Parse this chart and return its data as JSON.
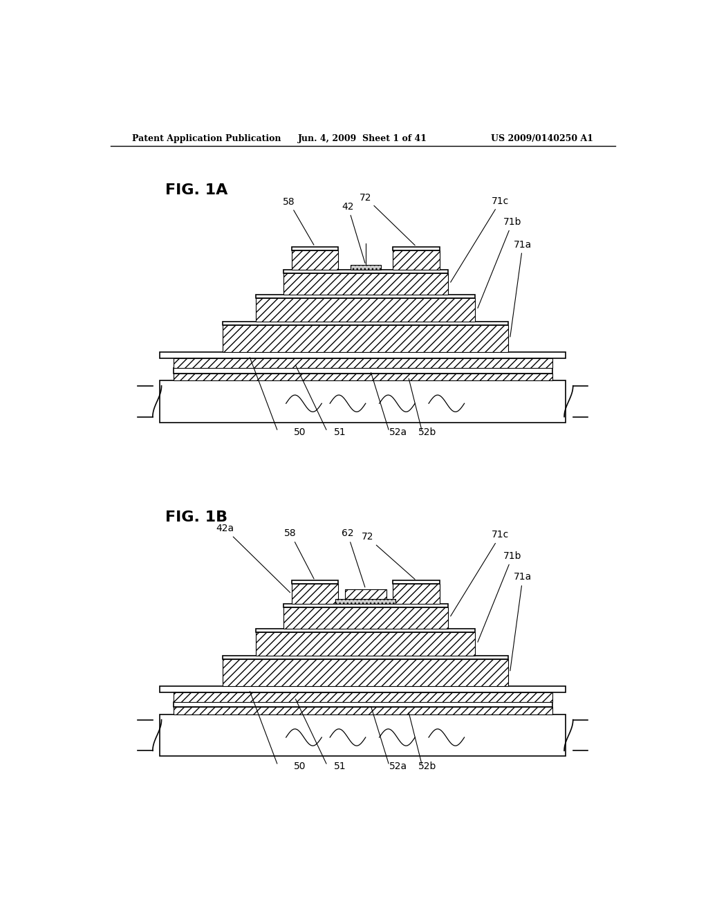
{
  "bg_color": "#ffffff",
  "line_color": "#000000",
  "header_left": "Patent Application Publication",
  "header_mid": "Jun. 4, 2009  Sheet 1 of 41",
  "header_right": "US 2009/0140250 A1",
  "fig1a_label": "FIG. 1A",
  "fig1b_label": "FIG. 1B"
}
